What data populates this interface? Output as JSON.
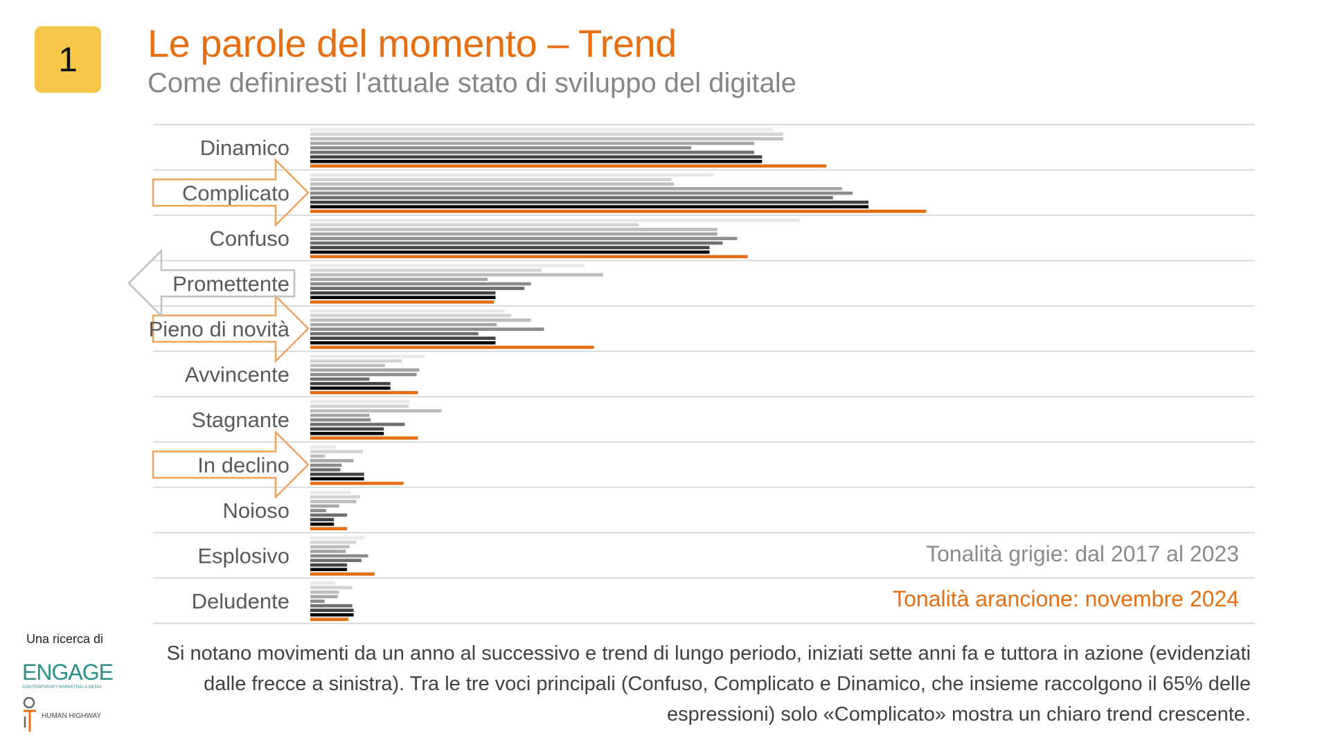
{
  "header": {
    "badge": "1",
    "title": "Le parole del momento – Trend",
    "subtitle": "Come definiresti l'attuale stato di sviluppo del digitale"
  },
  "legend": {
    "gray": "Tonalità grigie: dal 2017 al 2023",
    "orange": "Tonalità arancione: novembre 2024"
  },
  "footer": {
    "credit": "Una ricerca di",
    "engage_logo": "ENGAGE",
    "engage_tagline": "CONTEMPORARY MARKETING & MEDIA",
    "hh_logo": "HUMAN HIGHWAY",
    "note": "Si notano movimenti da un anno al successivo e trend di lungo periodo, iniziati sette anni fa e tuttora in azione (evidenziati dalle frecce a sinistra). Tra le tre voci principali (Confuso, Complicato e Dinamico, che insieme raccolgono il 65% delle espressioni) solo «Complicato» mostra un chiaro trend crescente."
  },
  "colors": {
    "accent": "#e56f12",
    "badge": "#f7c548",
    "series": [
      "#e8e8e8",
      "#d2d2d2",
      "#bdbdbd",
      "#a6a6a6",
      "#8c8c8c",
      "#6e6e6e",
      "#444444",
      "#000000",
      "#e56f12"
    ],
    "arrow_orange": "#f0a25a",
    "arrow_gray": "#bfbfbf"
  },
  "chart_data": {
    "type": "bar",
    "orientation": "horizontal",
    "categories": [
      "Dinamico",
      "Complicato",
      "Confuso",
      "Promettente",
      "Pieno di novità",
      "Avvincente",
      "Stagnante",
      "In declino",
      "Noioso",
      "Esplosivo",
      "Deludente"
    ],
    "series": [
      {
        "values": [
          35.2,
          30.7,
          37.3,
          20.9,
          14.8,
          8.7,
          7.6,
          2.0,
          3.1,
          4.1,
          1.9
        ]
      },
      {
        "values": [
          36.0,
          27.5,
          25.0,
          17.6,
          15.3,
          7.0,
          7.5,
          4.0,
          3.8,
          3.5,
          3.2
        ]
      },
      {
        "values": [
          36.0,
          27.7,
          31.0,
          22.3,
          16.8,
          5.7,
          10.0,
          1.1,
          3.5,
          3.0,
          2.2
        ]
      },
      {
        "values": [
          33.8,
          40.5,
          31.0,
          13.5,
          14.2,
          8.3,
          4.5,
          3.3,
          2.2,
          2.7,
          2.1
        ]
      },
      {
        "values": [
          29.0,
          41.3,
          32.5,
          16.8,
          17.8,
          8.1,
          4.6,
          2.4,
          1.2,
          4.4,
          1.1
        ]
      },
      {
        "values": [
          33.8,
          39.8,
          31.4,
          16.3,
          12.8,
          4.5,
          7.2,
          2.3,
          2.8,
          3.9,
          3.2
        ]
      },
      {
        "values": [
          34.4,
          42.5,
          30.4,
          14.1,
          14.1,
          6.1,
          5.6,
          4.1,
          1.8,
          2.8,
          3.3
        ]
      },
      {
        "values": [
          34.4,
          42.5,
          30.4,
          14.1,
          14.1,
          6.1,
          5.6,
          4.1,
          1.8,
          2.8,
          3.3
        ]
      },
      {
        "values": [
          39.3,
          46.9,
          33.3,
          14.0,
          21.6,
          8.2,
          8.2,
          7.1,
          2.8,
          4.9,
          2.9
        ]
      }
    ],
    "xlim": [
      0,
      58
    ],
    "grid": false,
    "legend": "bottom-right",
    "annotations": {
      "arrows_right_orange": [
        "Complicato",
        "Pieno di novità",
        "In declino"
      ],
      "arrows_left_gray": [
        "Promettente"
      ]
    }
  }
}
